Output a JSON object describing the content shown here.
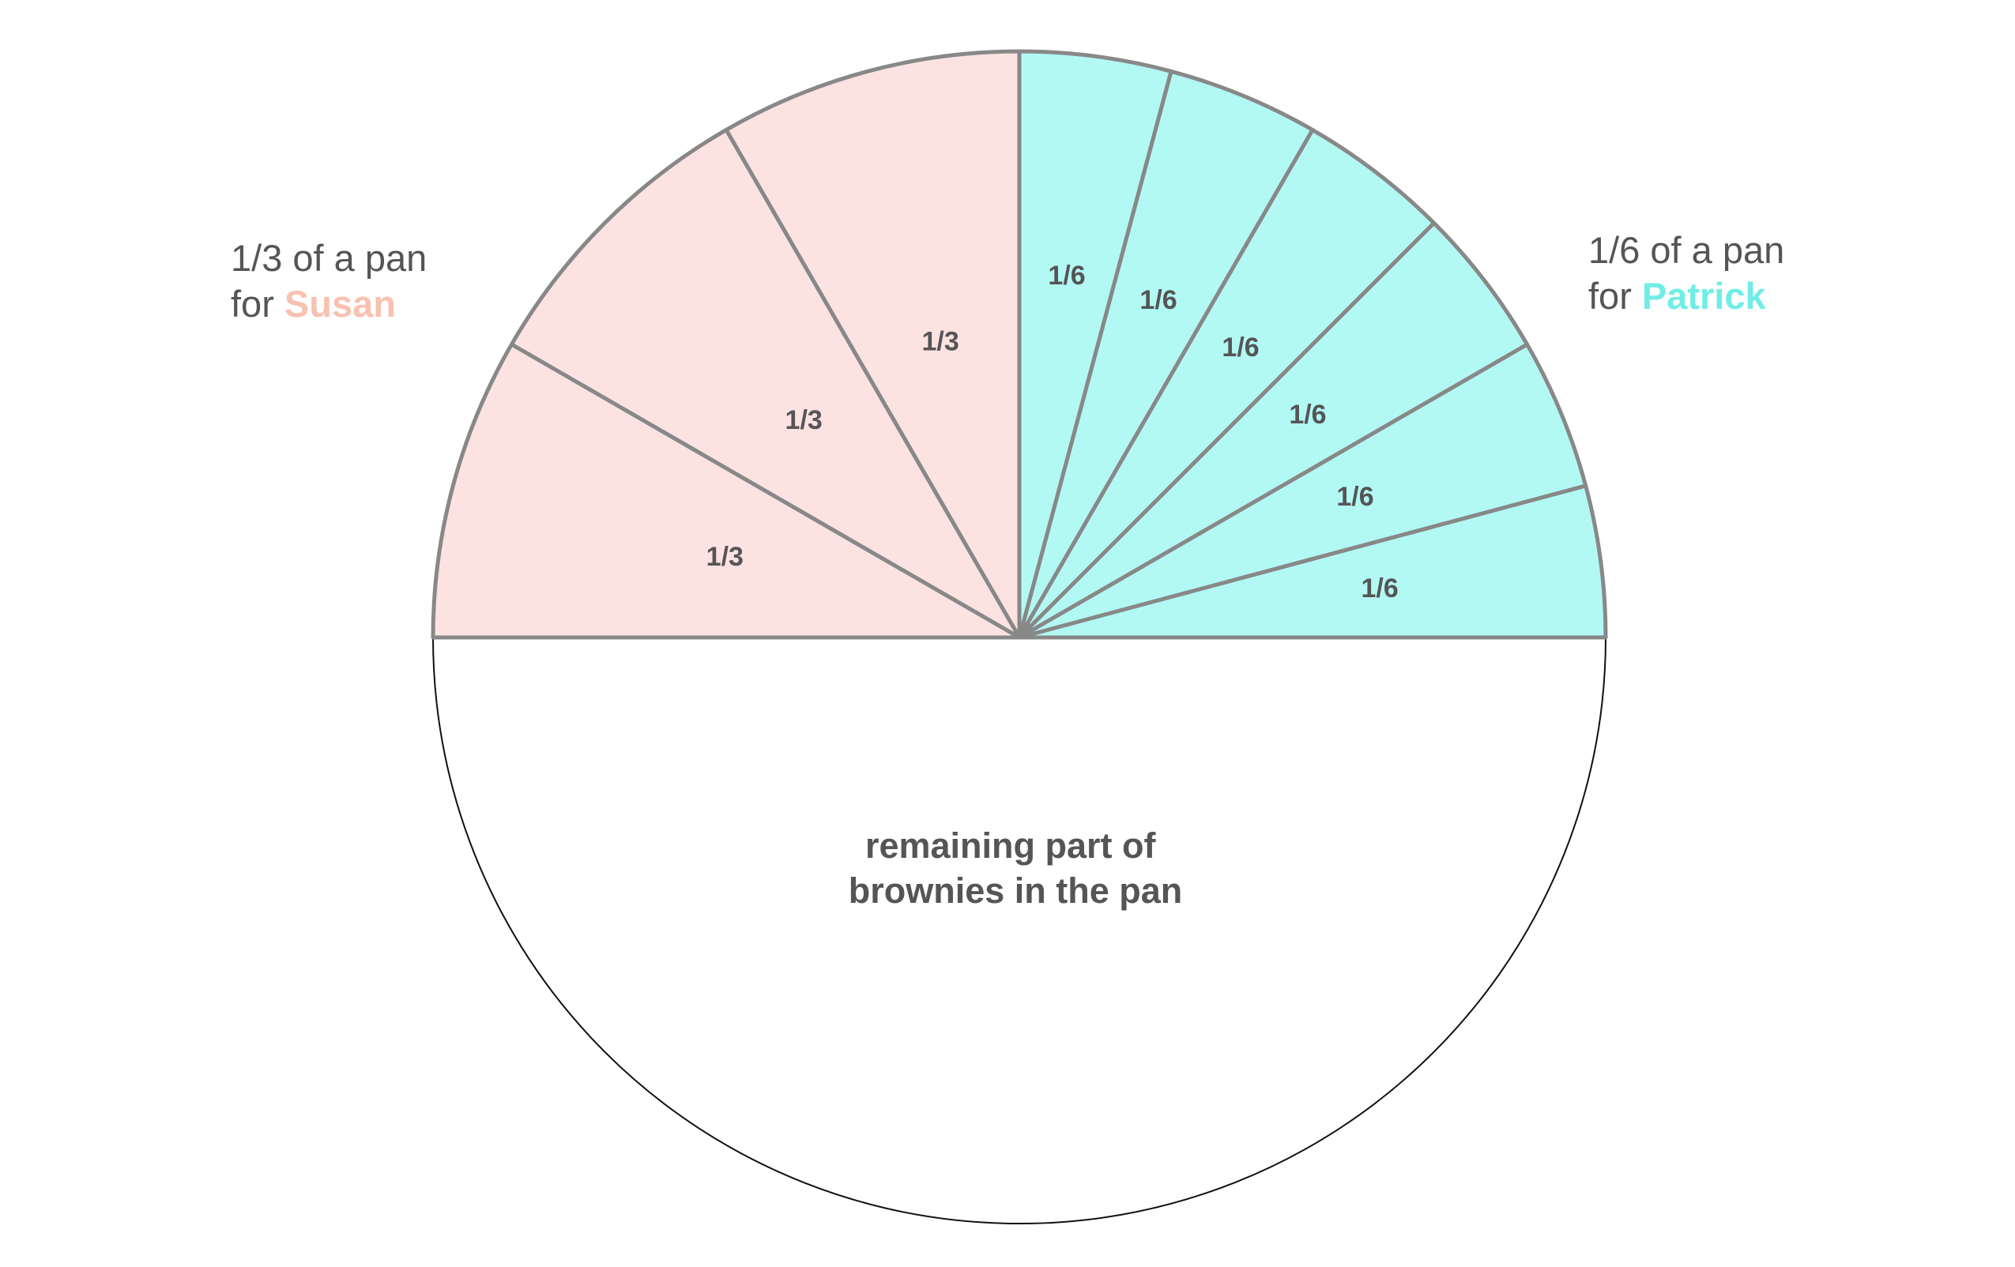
{
  "diagram": {
    "susan": {
      "caption_line1": "1/3 of a pan",
      "caption_for": "for",
      "name": "Susan",
      "slice_label": "1/3",
      "slice_count": 3,
      "fill_color": "#fde2e2",
      "name_color": "#f8c1b0"
    },
    "patrick": {
      "caption_line1": "1/6 of a pan",
      "caption_for": "for",
      "name": "Patrick",
      "slice_label": "1/6",
      "slice_count": 6,
      "fill_color": "#b2f9f4",
      "name_color": "#70ede6"
    },
    "remaining": {
      "label_line1": "remaining part of",
      "label_line2": "brownies in the pan",
      "fill_color": "#ffffff"
    },
    "outline_color": "#888888",
    "text_color": "#555555"
  }
}
